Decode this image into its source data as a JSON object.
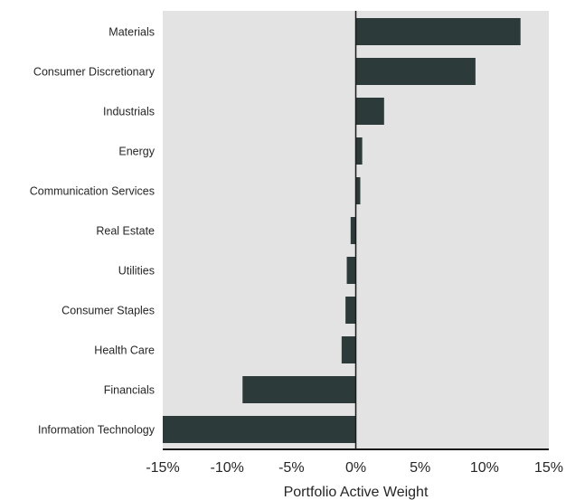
{
  "chart_data": {
    "type": "bar",
    "orientation": "horizontal",
    "categories": [
      "Materials",
      "Consumer Discretionary",
      "Industrials",
      "Energy",
      "Communication Services",
      "Real Estate",
      "Utilities",
      "Consumer Staples",
      "Health Care",
      "Financials",
      "Information Technology"
    ],
    "values": [
      12.8,
      9.3,
      2.2,
      0.5,
      0.35,
      -0.4,
      -0.7,
      -0.8,
      -1.1,
      -8.8,
      -15.0
    ],
    "xlabel": "Portfolio Active Weight",
    "ylabel": "",
    "xlim": [
      -15,
      15
    ],
    "x_ticks": [
      -15,
      -10,
      -5,
      0,
      5,
      10,
      15
    ],
    "x_tick_labels": [
      "-15%",
      "-10%",
      "-5%",
      "0%",
      "5%",
      "10%",
      "15%"
    ],
    "grid": false,
    "legend": "none",
    "colors": {
      "bar": "#2c3a39",
      "plot_background": "#e3e3e3",
      "zero_line": "#1a1a1a",
      "axis_line": "#1a1a1a",
      "label_text": "#262626"
    }
  }
}
